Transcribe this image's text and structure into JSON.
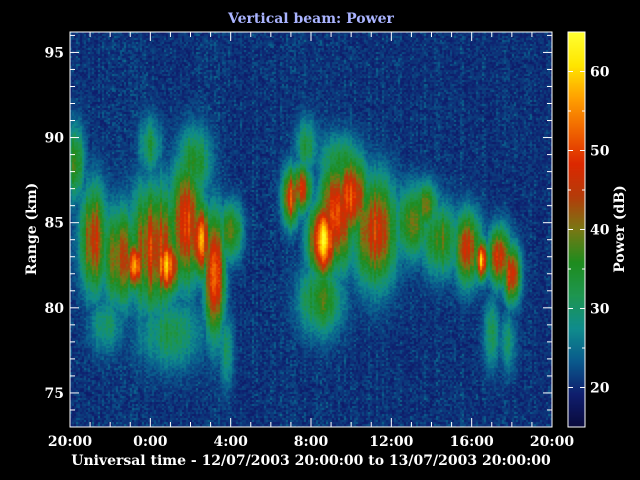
{
  "colors": {
    "background": "#000000",
    "axis": "#ffffff",
    "title": "#aab4ff",
    "colormap": [
      "#0a0a3c",
      "#0f1e6e",
      "#0a5a8c",
      "#0f8c8c",
      "#1e9650",
      "#1e8c1e",
      "#787814",
      "#b43c0a",
      "#dc2800",
      "#f06400",
      "#ffa000",
      "#ffe600",
      "#ffff32"
    ]
  },
  "chart_data": {
    "type": "heatmap",
    "title": "Vertical beam: Power",
    "xlabel": "Universal time - 12/07/2003 20:00:00 to 13/07/2003 20:00:00",
    "ylabel": "Range (km)",
    "colorbar_label": "Power (dB)",
    "x_ticks": [
      "20:00",
      "0:00",
      "4:00",
      "8:00",
      "12:00",
      "16:00",
      "20:00"
    ],
    "x_tick_hours": [
      0,
      4,
      8,
      12,
      16,
      20,
      24
    ],
    "xlim_hours": [
      0,
      24
    ],
    "y_ticks": [
      "75",
      "80",
      "85",
      "90",
      "95"
    ],
    "y_tick_values": [
      75,
      80,
      85,
      90,
      95
    ],
    "ylim": [
      73,
      96.2
    ],
    "colorbar_ticks": [
      "20",
      "30",
      "40",
      "50",
      "60"
    ],
    "colorbar_tick_values": [
      20,
      30,
      40,
      50,
      60
    ],
    "clim": [
      15,
      65
    ],
    "background_db": 20,
    "blobs": [
      {
        "t": 0.3,
        "r": 88.5,
        "st": 0.3,
        "sr": 1.6,
        "p": 38
      },
      {
        "t": 1.2,
        "r": 84.0,
        "st": 0.5,
        "sr": 2.2,
        "p": 46
      },
      {
        "t": 2.5,
        "r": 83.0,
        "st": 0.7,
        "sr": 2.0,
        "p": 44
      },
      {
        "t": 3.2,
        "r": 82.5,
        "st": 0.3,
        "sr": 1.0,
        "p": 58
      },
      {
        "t": 4.2,
        "r": 83.5,
        "st": 0.9,
        "sr": 2.5,
        "p": 48
      },
      {
        "t": 4.8,
        "r": 82.5,
        "st": 0.5,
        "sr": 1.2,
        "p": 56
      },
      {
        "t": 5.8,
        "r": 85.0,
        "st": 0.6,
        "sr": 2.5,
        "p": 49
      },
      {
        "t": 6.5,
        "r": 84.0,
        "st": 0.35,
        "sr": 1.5,
        "p": 56
      },
      {
        "t": 7.2,
        "r": 82.0,
        "st": 0.35,
        "sr": 2.5,
        "p": 54
      },
      {
        "t": 6.2,
        "r": 88.5,
        "st": 0.6,
        "sr": 1.5,
        "p": 36
      },
      {
        "t": 8.0,
        "r": 84.5,
        "st": 0.4,
        "sr": 1.2,
        "p": 40
      },
      {
        "t": 5.0,
        "r": 78.5,
        "st": 1.2,
        "sr": 1.5,
        "p": 32
      },
      {
        "t": 1.8,
        "r": 79.0,
        "st": 0.6,
        "sr": 1.2,
        "p": 31
      },
      {
        "t": 7.8,
        "r": 77.5,
        "st": 0.25,
        "sr": 1.6,
        "p": 31
      },
      {
        "t": 11.0,
        "r": 86.5,
        "st": 0.3,
        "sr": 1.2,
        "p": 50
      },
      {
        "t": 11.5,
        "r": 87.0,
        "st": 0.4,
        "sr": 1.0,
        "p": 46
      },
      {
        "t": 12.6,
        "r": 84.0,
        "st": 0.5,
        "sr": 1.5,
        "p": 60
      },
      {
        "t": 13.3,
        "r": 85.5,
        "st": 0.6,
        "sr": 2.2,
        "p": 52
      },
      {
        "t": 14.0,
        "r": 86.5,
        "st": 0.6,
        "sr": 1.7,
        "p": 52
      },
      {
        "t": 15.2,
        "r": 84.5,
        "st": 0.8,
        "sr": 2.2,
        "p": 48
      },
      {
        "t": 12.5,
        "r": 80.5,
        "st": 0.8,
        "sr": 1.5,
        "p": 37
      },
      {
        "t": 13.5,
        "r": 88.5,
        "st": 0.8,
        "sr": 1.2,
        "p": 35
      },
      {
        "t": 17.0,
        "r": 85.0,
        "st": 0.6,
        "sr": 1.5,
        "p": 40
      },
      {
        "t": 17.7,
        "r": 86.0,
        "st": 0.5,
        "sr": 1.0,
        "p": 38
      },
      {
        "t": 18.5,
        "r": 84.0,
        "st": 0.7,
        "sr": 1.5,
        "p": 38
      },
      {
        "t": 19.8,
        "r": 83.5,
        "st": 0.5,
        "sr": 1.5,
        "p": 45
      },
      {
        "t": 20.5,
        "r": 82.8,
        "st": 0.2,
        "sr": 0.8,
        "p": 58
      },
      {
        "t": 21.4,
        "r": 83.0,
        "st": 0.4,
        "sr": 1.2,
        "p": 48
      },
      {
        "t": 22.0,
        "r": 82.0,
        "st": 0.3,
        "sr": 1.2,
        "p": 50
      },
      {
        "t": 21.0,
        "r": 78.5,
        "st": 0.3,
        "sr": 1.5,
        "p": 31
      },
      {
        "t": 21.8,
        "r": 78.0,
        "st": 0.3,
        "sr": 1.3,
        "p": 30
      },
      {
        "t": 4.0,
        "r": 89.5,
        "st": 0.4,
        "sr": 1.2,
        "p": 33
      },
      {
        "t": 11.8,
        "r": 89.5,
        "st": 0.4,
        "sr": 1.2,
        "p": 33
      }
    ]
  }
}
